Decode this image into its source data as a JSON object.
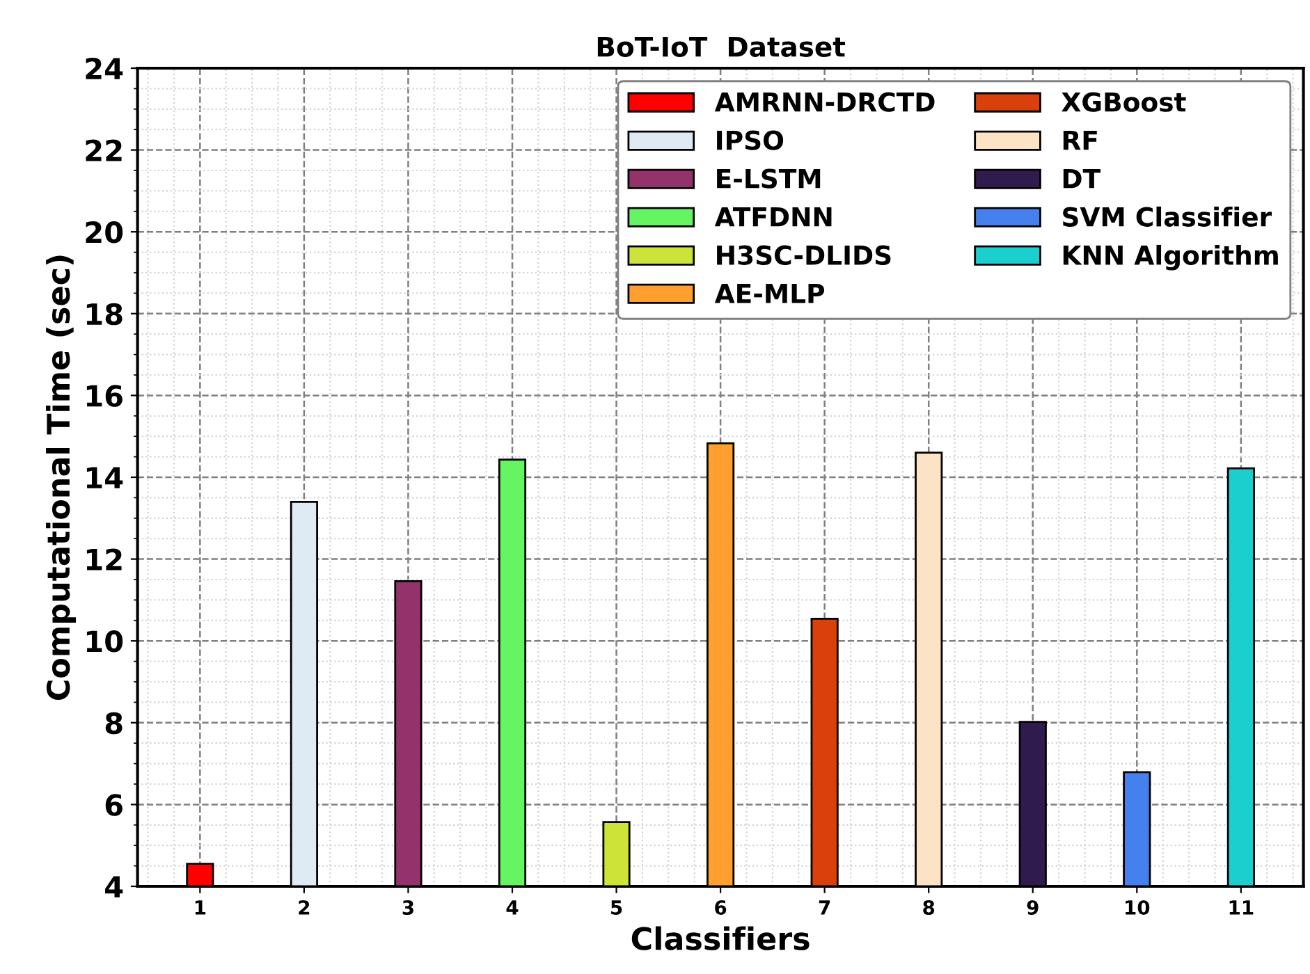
{
  "chart_data": {
    "type": "bar",
    "title": "BoT-IoT  Dataset",
    "xlabel": "Classifiers",
    "ylabel": "Computational Time (sec)",
    "categories": [
      "1",
      "2",
      "3",
      "4",
      "5",
      "6",
      "7",
      "8",
      "9",
      "10",
      "11"
    ],
    "series": [
      {
        "name": "AMRNN-DRCTD",
        "color": "#ff0000",
        "values": [
          4.55,
          null,
          null,
          null,
          null,
          null,
          null,
          null,
          null,
          null,
          null
        ]
      },
      {
        "name": "IPSO",
        "color": "#dfeaf3",
        "values": [
          null,
          13.4,
          null,
          null,
          null,
          null,
          null,
          null,
          null,
          null,
          null
        ]
      },
      {
        "name": "E-LSTM",
        "color": "#94336b",
        "values": [
          null,
          null,
          11.46,
          null,
          null,
          null,
          null,
          null,
          null,
          null,
          null
        ]
      },
      {
        "name": "ATFDNN",
        "color": "#66f562",
        "values": [
          null,
          null,
          null,
          14.43,
          null,
          null,
          null,
          null,
          null,
          null,
          null
        ]
      },
      {
        "name": "H3SC-DLIDS",
        "color": "#cde337",
        "values": [
          null,
          null,
          null,
          null,
          5.57,
          null,
          null,
          null,
          null,
          null,
          null
        ]
      },
      {
        "name": "AE-MLP",
        "color": "#ff9f30",
        "values": [
          null,
          null,
          null,
          null,
          null,
          14.83,
          null,
          null,
          null,
          null,
          null
        ]
      },
      {
        "name": "XGBoost",
        "color": "#d9400c",
        "values": [
          null,
          null,
          null,
          null,
          null,
          null,
          10.54,
          null,
          null,
          null,
          null
        ]
      },
      {
        "name": "RF",
        "color": "#fde3c5",
        "values": [
          null,
          null,
          null,
          null,
          null,
          null,
          null,
          14.6,
          null,
          null,
          null
        ]
      },
      {
        "name": "DT",
        "color": "#2f1b4d",
        "values": [
          null,
          null,
          null,
          null,
          null,
          null,
          null,
          null,
          8.02,
          null,
          null
        ]
      },
      {
        "name": "SVM Classifier",
        "color": "#4480ee",
        "values": [
          null,
          null,
          null,
          null,
          null,
          null,
          null,
          null,
          null,
          6.79,
          null
        ]
      },
      {
        "name": "KNN Algorithm",
        "color": "#1ccfcf",
        "values": [
          null,
          null,
          null,
          null,
          null,
          null,
          null,
          null,
          null,
          null,
          14.22
        ]
      }
    ],
    "ylim": [
      4,
      24
    ],
    "yticks": [
      4,
      6,
      8,
      10,
      12,
      14,
      16,
      18,
      20,
      22,
      24
    ],
    "grid": true,
    "legend": "top right"
  }
}
